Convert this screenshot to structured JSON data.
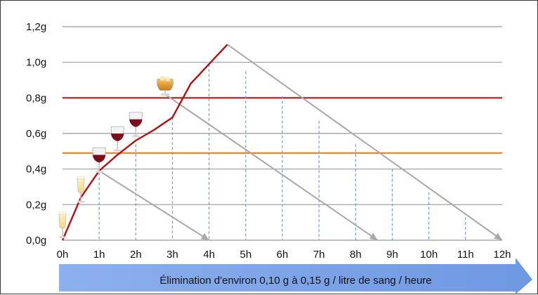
{
  "chart_data": {
    "type": "line",
    "title": "",
    "xlabel": "",
    "ylabel": "",
    "x_ticks": [
      "0h",
      "1h",
      "2h",
      "3h",
      "4h",
      "5h",
      "6h",
      "7h",
      "8h",
      "9h",
      "10h",
      "11h",
      "12h"
    ],
    "y_ticks": [
      "0,0g",
      "0,2g",
      "0,4g",
      "0,6g",
      "0,8g",
      "1,0g",
      "1,2g"
    ],
    "xlim": [
      0,
      12
    ],
    "ylim": [
      0,
      1.2
    ],
    "grid": true,
    "thresholds": [
      {
        "value": 0.8,
        "color": "#c00000"
      },
      {
        "value": 0.49,
        "color": "#f07a16"
      }
    ],
    "series": [
      {
        "color": "#b01010",
        "points": [
          [
            0,
            0
          ],
          [
            0.5,
            0.24
          ],
          [
            1,
            0.39
          ],
          [
            1.5,
            0.48
          ],
          [
            2,
            0.56
          ],
          [
            2.5,
            0.62
          ],
          [
            3,
            0.69
          ],
          [
            3.5,
            0.88
          ],
          [
            4,
            0.99
          ],
          [
            4.5,
            1.1
          ]
        ]
      }
    ],
    "elimination_lines": [
      {
        "from": [
          1,
          0.39
        ],
        "to": [
          4,
          0
        ]
      },
      {
        "from": [
          2.8,
          0.82
        ],
        "to": [
          8.6,
          0
        ]
      },
      {
        "from": [
          4.5,
          1.1
        ],
        "to": [
          12,
          0
        ]
      }
    ],
    "dashed_markers": [
      [
        1,
        0.38
      ],
      [
        2,
        0.54
      ],
      [
        3,
        0.69
      ],
      [
        4,
        0.99
      ],
      [
        5,
        0.95
      ],
      [
        6,
        0.81
      ],
      [
        7,
        0.67
      ],
      [
        8,
        0.54
      ],
      [
        9,
        0.4
      ],
      [
        10,
        0.27
      ],
      [
        11,
        0.13
      ]
    ],
    "glasses": [
      {
        "kind": "champagne",
        "at": [
          0,
          0.06
        ]
      },
      {
        "kind": "champagne",
        "at": [
          0.5,
          0.26
        ]
      },
      {
        "kind": "red-wine",
        "at": [
          1,
          0.44
        ]
      },
      {
        "kind": "red-wine",
        "at": [
          1.5,
          0.56
        ]
      },
      {
        "kind": "red-wine",
        "at": [
          2,
          0.64
        ]
      },
      {
        "kind": "whisky",
        "at": [
          2.8,
          0.85
        ]
      }
    ],
    "colors": {
      "grid": "#9a9a9a",
      "line": "#b01010",
      "elimination": "#a8a8a8",
      "dashed": "#6a9fe0",
      "arrow": "#7fa6e8"
    }
  },
  "banner_text": "Élimination d'environ 0,10 g à 0,15 g / litre de sang / heure"
}
